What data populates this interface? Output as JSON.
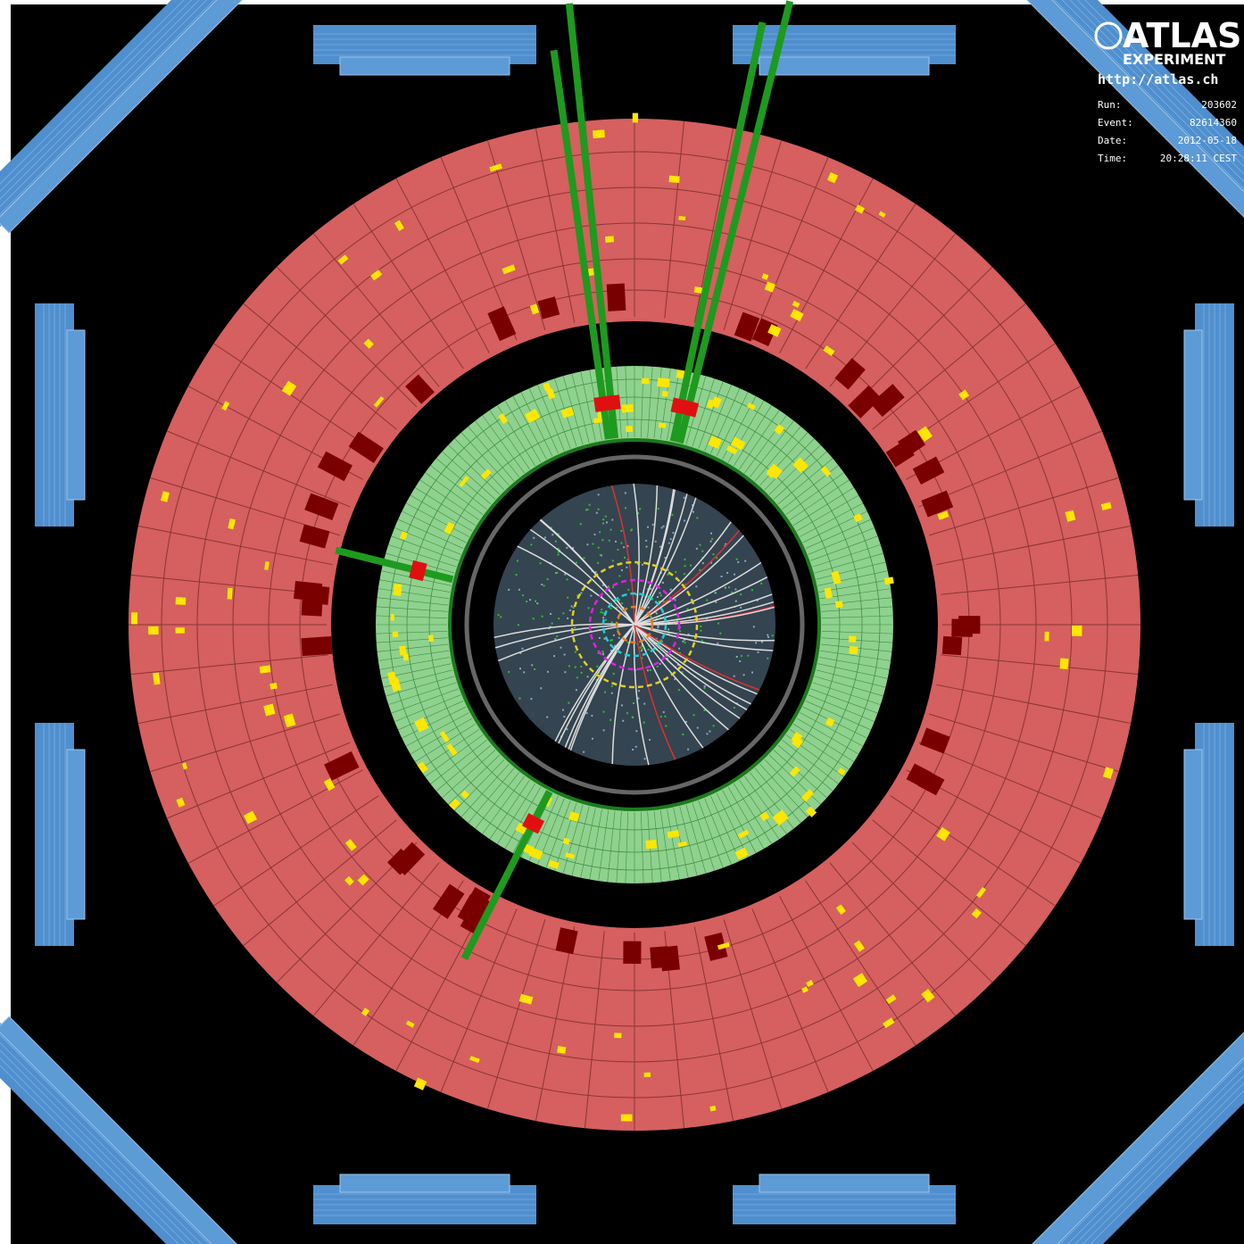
{
  "logo": {
    "title": "ATLAS",
    "subtitle": "EXPERIMENT",
    "url": "http://atlas.ch"
  },
  "event_info": [
    {
      "label": "Run:",
      "value": "203602"
    },
    {
      "label": "Event:",
      "value": "82614360"
    },
    {
      "label": "Date:",
      "value": "2012-05-18"
    },
    {
      "label": "Time:",
      "value": "20:28:11 CEST"
    }
  ]
}
